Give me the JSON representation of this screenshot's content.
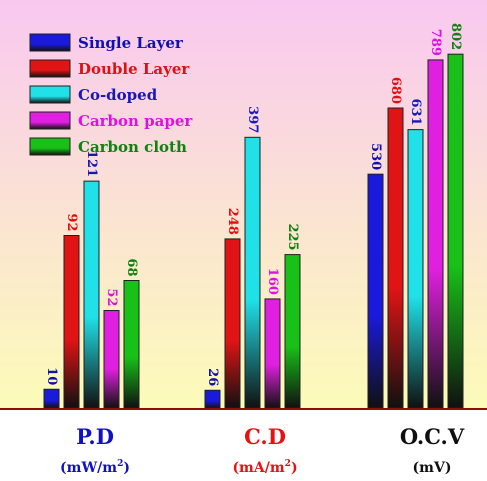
{
  "chart_data": {
    "type": "bar",
    "categories": [
      "P.D",
      "C.D",
      "O.C.V"
    ],
    "category_units": [
      {
        "pre": "(mW/m",
        "sup": "2",
        "post": ")"
      },
      {
        "pre": "(mA/m",
        "sup": "2",
        "post": ")"
      },
      {
        "pre": "(mV)",
        "sup": "",
        "post": ""
      }
    ],
    "category_colors": [
      "#1010c8",
      "#e81010",
      "#101010"
    ],
    "series": [
      {
        "name": "Single Layer",
        "values": [
          10,
          26,
          530
        ],
        "color": "#1a1adc",
        "label_color": "#1010b0"
      },
      {
        "name": "Double Layer",
        "values": [
          92,
          248,
          680
        ],
        "color": "#e01414",
        "label_color": "#e01010"
      },
      {
        "name": "Co-doped",
        "values": [
          121,
          397,
          631
        ],
        "color": "#20e0e8",
        "label_color": "#1818b8"
      },
      {
        "name": "Carbon paper",
        "values": [
          52,
          160,
          789
        ],
        "color": "#e020e0",
        "label_color": "#e010e0"
      },
      {
        "name": "Carbon cloth",
        "values": [
          68,
          225,
          802
        ],
        "color": "#18c018",
        "label_color": "#108010"
      }
    ],
    "category_scale_max": [
      200,
      550,
      850
    ],
    "background_gradient": [
      "#f9c8f0",
      "#fcfcb8"
    ],
    "legend_position": "top-left",
    "grid": false
  }
}
